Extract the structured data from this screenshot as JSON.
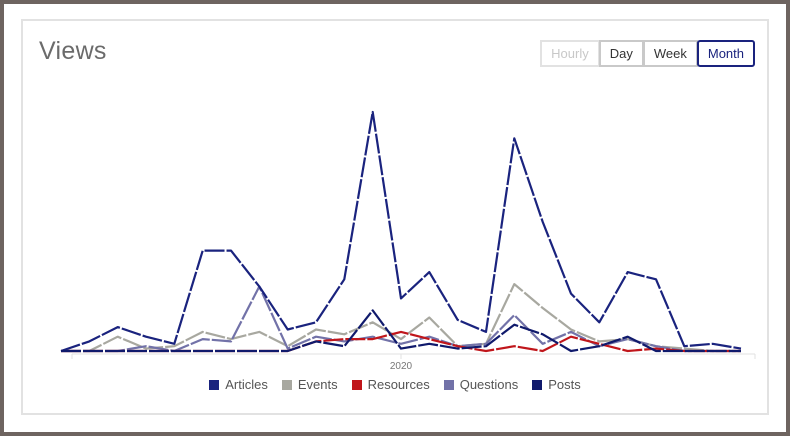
{
  "card": {
    "title": "Views"
  },
  "range_buttons": [
    {
      "label": "Hourly",
      "state": "disabled"
    },
    {
      "label": "Day",
      "state": "normal"
    },
    {
      "label": "Week",
      "state": "normal"
    },
    {
      "label": "Month",
      "state": "active"
    }
  ],
  "chart_data": {
    "type": "line",
    "title": "",
    "xlabel": "",
    "ylabel": "",
    "x_ticks": [
      "2020"
    ],
    "ylim": [
      0,
      100
    ],
    "grid": false,
    "legend_position": "bottom",
    "series": [
      {
        "name": "Articles",
        "color": "#1a237e",
        "values": [
          0,
          4,
          10,
          6,
          3,
          42,
          42,
          27,
          9,
          12,
          30,
          100,
          22,
          33,
          13,
          8,
          89,
          54,
          24,
          12,
          33,
          30,
          2,
          3,
          1
        ]
      },
      {
        "name": "Events",
        "color": "#a8a8a0",
        "values": [
          0,
          0,
          6,
          1,
          2,
          8,
          5,
          8,
          2,
          9,
          7,
          12,
          5,
          14,
          2,
          3,
          28,
          18,
          9,
          4,
          5,
          2,
          1,
          0,
          0
        ]
      },
      {
        "name": "Resources",
        "color": "#c0161b",
        "values": [
          0,
          0,
          0,
          0,
          0,
          0,
          0,
          0,
          0,
          4,
          5,
          5,
          8,
          5,
          2,
          0,
          2,
          0,
          6,
          3,
          0,
          1,
          0,
          0,
          0
        ]
      },
      {
        "name": "Questions",
        "color": "#7272a8",
        "values": [
          0,
          0,
          0,
          2,
          0,
          5,
          4,
          27,
          1,
          6,
          4,
          6,
          3,
          6,
          2,
          3,
          15,
          3,
          8,
          2,
          5,
          2,
          0,
          0,
          0
        ]
      },
      {
        "name": "Posts",
        "color": "#101a6c",
        "values": [
          0,
          0,
          0,
          0,
          0,
          0,
          0,
          0,
          0,
          4,
          2,
          17,
          1,
          3,
          1,
          2,
          11,
          7,
          0,
          2,
          6,
          0,
          0,
          0,
          0
        ]
      }
    ]
  }
}
